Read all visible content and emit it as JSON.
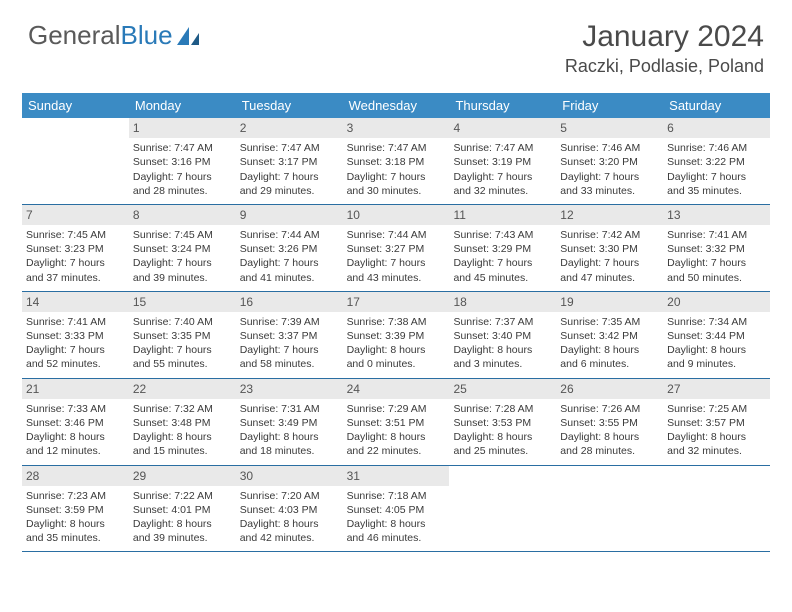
{
  "logo": {
    "text1": "General",
    "text2": "Blue"
  },
  "title": "January 2024",
  "location": "Raczki, Podlasie, Poland",
  "colors": {
    "header_bg": "#3b8bc4",
    "header_text": "#ffffff",
    "daynum_bg": "#e9e9e9",
    "rule": "#2a6ea2",
    "logo_gray": "#5a5a5a",
    "logo_blue": "#2a7ab8"
  },
  "day_names": [
    "Sunday",
    "Monday",
    "Tuesday",
    "Wednesday",
    "Thursday",
    "Friday",
    "Saturday"
  ],
  "weeks": [
    [
      {
        "n": "",
        "sr": "",
        "ss": "",
        "dl": ""
      },
      {
        "n": "1",
        "sr": "Sunrise: 7:47 AM",
        "ss": "Sunset: 3:16 PM",
        "dl": "Daylight: 7 hours and 28 minutes."
      },
      {
        "n": "2",
        "sr": "Sunrise: 7:47 AM",
        "ss": "Sunset: 3:17 PM",
        "dl": "Daylight: 7 hours and 29 minutes."
      },
      {
        "n": "3",
        "sr": "Sunrise: 7:47 AM",
        "ss": "Sunset: 3:18 PM",
        "dl": "Daylight: 7 hours and 30 minutes."
      },
      {
        "n": "4",
        "sr": "Sunrise: 7:47 AM",
        "ss": "Sunset: 3:19 PM",
        "dl": "Daylight: 7 hours and 32 minutes."
      },
      {
        "n": "5",
        "sr": "Sunrise: 7:46 AM",
        "ss": "Sunset: 3:20 PM",
        "dl": "Daylight: 7 hours and 33 minutes."
      },
      {
        "n": "6",
        "sr": "Sunrise: 7:46 AM",
        "ss": "Sunset: 3:22 PM",
        "dl": "Daylight: 7 hours and 35 minutes."
      }
    ],
    [
      {
        "n": "7",
        "sr": "Sunrise: 7:45 AM",
        "ss": "Sunset: 3:23 PM",
        "dl": "Daylight: 7 hours and 37 minutes."
      },
      {
        "n": "8",
        "sr": "Sunrise: 7:45 AM",
        "ss": "Sunset: 3:24 PM",
        "dl": "Daylight: 7 hours and 39 minutes."
      },
      {
        "n": "9",
        "sr": "Sunrise: 7:44 AM",
        "ss": "Sunset: 3:26 PM",
        "dl": "Daylight: 7 hours and 41 minutes."
      },
      {
        "n": "10",
        "sr": "Sunrise: 7:44 AM",
        "ss": "Sunset: 3:27 PM",
        "dl": "Daylight: 7 hours and 43 minutes."
      },
      {
        "n": "11",
        "sr": "Sunrise: 7:43 AM",
        "ss": "Sunset: 3:29 PM",
        "dl": "Daylight: 7 hours and 45 minutes."
      },
      {
        "n": "12",
        "sr": "Sunrise: 7:42 AM",
        "ss": "Sunset: 3:30 PM",
        "dl": "Daylight: 7 hours and 47 minutes."
      },
      {
        "n": "13",
        "sr": "Sunrise: 7:41 AM",
        "ss": "Sunset: 3:32 PM",
        "dl": "Daylight: 7 hours and 50 minutes."
      }
    ],
    [
      {
        "n": "14",
        "sr": "Sunrise: 7:41 AM",
        "ss": "Sunset: 3:33 PM",
        "dl": "Daylight: 7 hours and 52 minutes."
      },
      {
        "n": "15",
        "sr": "Sunrise: 7:40 AM",
        "ss": "Sunset: 3:35 PM",
        "dl": "Daylight: 7 hours and 55 minutes."
      },
      {
        "n": "16",
        "sr": "Sunrise: 7:39 AM",
        "ss": "Sunset: 3:37 PM",
        "dl": "Daylight: 7 hours and 58 minutes."
      },
      {
        "n": "17",
        "sr": "Sunrise: 7:38 AM",
        "ss": "Sunset: 3:39 PM",
        "dl": "Daylight: 8 hours and 0 minutes."
      },
      {
        "n": "18",
        "sr": "Sunrise: 7:37 AM",
        "ss": "Sunset: 3:40 PM",
        "dl": "Daylight: 8 hours and 3 minutes."
      },
      {
        "n": "19",
        "sr": "Sunrise: 7:35 AM",
        "ss": "Sunset: 3:42 PM",
        "dl": "Daylight: 8 hours and 6 minutes."
      },
      {
        "n": "20",
        "sr": "Sunrise: 7:34 AM",
        "ss": "Sunset: 3:44 PM",
        "dl": "Daylight: 8 hours and 9 minutes."
      }
    ],
    [
      {
        "n": "21",
        "sr": "Sunrise: 7:33 AM",
        "ss": "Sunset: 3:46 PM",
        "dl": "Daylight: 8 hours and 12 minutes."
      },
      {
        "n": "22",
        "sr": "Sunrise: 7:32 AM",
        "ss": "Sunset: 3:48 PM",
        "dl": "Daylight: 8 hours and 15 minutes."
      },
      {
        "n": "23",
        "sr": "Sunrise: 7:31 AM",
        "ss": "Sunset: 3:49 PM",
        "dl": "Daylight: 8 hours and 18 minutes."
      },
      {
        "n": "24",
        "sr": "Sunrise: 7:29 AM",
        "ss": "Sunset: 3:51 PM",
        "dl": "Daylight: 8 hours and 22 minutes."
      },
      {
        "n": "25",
        "sr": "Sunrise: 7:28 AM",
        "ss": "Sunset: 3:53 PM",
        "dl": "Daylight: 8 hours and 25 minutes."
      },
      {
        "n": "26",
        "sr": "Sunrise: 7:26 AM",
        "ss": "Sunset: 3:55 PM",
        "dl": "Daylight: 8 hours and 28 minutes."
      },
      {
        "n": "27",
        "sr": "Sunrise: 7:25 AM",
        "ss": "Sunset: 3:57 PM",
        "dl": "Daylight: 8 hours and 32 minutes."
      }
    ],
    [
      {
        "n": "28",
        "sr": "Sunrise: 7:23 AM",
        "ss": "Sunset: 3:59 PM",
        "dl": "Daylight: 8 hours and 35 minutes."
      },
      {
        "n": "29",
        "sr": "Sunrise: 7:22 AM",
        "ss": "Sunset: 4:01 PM",
        "dl": "Daylight: 8 hours and 39 minutes."
      },
      {
        "n": "30",
        "sr": "Sunrise: 7:20 AM",
        "ss": "Sunset: 4:03 PM",
        "dl": "Daylight: 8 hours and 42 minutes."
      },
      {
        "n": "31",
        "sr": "Sunrise: 7:18 AM",
        "ss": "Sunset: 4:05 PM",
        "dl": "Daylight: 8 hours and 46 minutes."
      },
      {
        "n": "",
        "sr": "",
        "ss": "",
        "dl": ""
      },
      {
        "n": "",
        "sr": "",
        "ss": "",
        "dl": ""
      },
      {
        "n": "",
        "sr": "",
        "ss": "",
        "dl": ""
      }
    ]
  ]
}
